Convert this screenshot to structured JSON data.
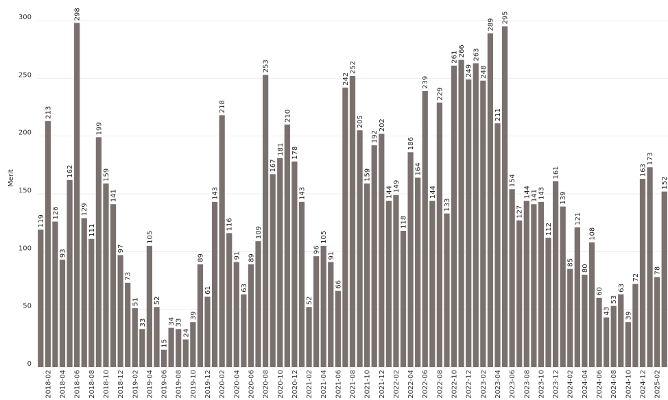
{
  "chart_data": {
    "type": "bar",
    "title": "",
    "xlabel": "",
    "ylabel": "Merit",
    "ylim": [
      0,
      300
    ],
    "yticks": [
      0,
      50,
      100,
      150,
      200,
      250,
      300
    ],
    "grid": true,
    "bar_color": "#7a716e",
    "categories": [
      "2018-01",
      "2018-02",
      "2018-03",
      "2018-04",
      "2018-05",
      "2018-06",
      "2018-07",
      "2018-08",
      "2018-09",
      "2018-10",
      "2018-11",
      "2018-12",
      "2019-01",
      "2019-02",
      "2019-03",
      "2019-04",
      "2019-05",
      "2019-06",
      "2019-07",
      "2019-08",
      "2019-09",
      "2019-10",
      "2019-11",
      "2019-12",
      "2020-01",
      "2020-02",
      "2020-03",
      "2020-04",
      "2020-05",
      "2020-06",
      "2020-07",
      "2020-08",
      "2020-09",
      "2020-10",
      "2020-11",
      "2020-12",
      "2021-01",
      "2021-02",
      "2021-03",
      "2021-04",
      "2021-05",
      "2021-06",
      "2021-07",
      "2021-08",
      "2021-09",
      "2021-10",
      "2021-11",
      "2021-12",
      "2022-01",
      "2022-02",
      "2022-03",
      "2022-04",
      "2022-05",
      "2022-06",
      "2022-07",
      "2022-08",
      "2022-09",
      "2022-10",
      "2022-11",
      "2022-12",
      "2023-01",
      "2023-02",
      "2023-03",
      "2023-04",
      "2023-05",
      "2023-06",
      "2023-07",
      "2023-08",
      "2023-09",
      "2023-10",
      "2023-11",
      "2023-12",
      "2024-01",
      "2024-02",
      "2024-03",
      "2024-04",
      "2024-05",
      "2024-06",
      "2024-07",
      "2024-08",
      "2024-09",
      "2024-10",
      "2024-11",
      "2024-12",
      "2025-01",
      "2025-02",
      "2025-03"
    ],
    "values": [
      119,
      213,
      126,
      93,
      162,
      298,
      129,
      111,
      199,
      159,
      141,
      97,
      73,
      51,
      33,
      105,
      52,
      15,
      34,
      33,
      24,
      39,
      89,
      61,
      143,
      218,
      116,
      91,
      63,
      89,
      109,
      253,
      167,
      181,
      210,
      178,
      143,
      52,
      96,
      105,
      91,
      66,
      242,
      252,
      205,
      159,
      192,
      202,
      144,
      149,
      118,
      186,
      164,
      239,
      144,
      229,
      133,
      261,
      266,
      249,
      263,
      248,
      289,
      211,
      295,
      154,
      127,
      144,
      141,
      143,
      112,
      161,
      139,
      85,
      121,
      80,
      108,
      60,
      43,
      53,
      63,
      39,
      72,
      163,
      173,
      78,
      152
    ],
    "xtick_labels": [
      "2018-02",
      "2018-04",
      "2018-06",
      "2018-08",
      "2018-10",
      "2018-12",
      "2019-02",
      "2019-04",
      "2019-06",
      "2019-08",
      "2019-10",
      "2019-12",
      "2020-02",
      "2020-04",
      "2020-06",
      "2020-08",
      "2020-10",
      "2020-12",
      "2021-02",
      "2021-04",
      "2021-06",
      "2021-08",
      "2021-10",
      "2021-12",
      "2022-02",
      "2022-04",
      "2022-06",
      "2022-08",
      "2022-10",
      "2022-12",
      "2023-02",
      "2023-04",
      "2023-06",
      "2023-08",
      "2023-10",
      "2023-12",
      "2024-02",
      "2024-04",
      "2024-06",
      "2024-08",
      "2024-10",
      "2024-12",
      "2025-02"
    ]
  }
}
